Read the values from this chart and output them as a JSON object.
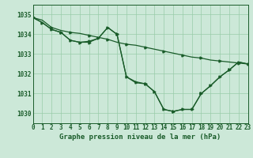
{
  "title": "Graphe pression niveau de la mer (hPa)",
  "bg_color": "#cce8d8",
  "grid_color": "#99ccaa",
  "line_color": "#1a5c2a",
  "xlim": [
    0,
    23
  ],
  "ylim": [
    1029.5,
    1035.5
  ],
  "yticks": [
    1030,
    1031,
    1032,
    1033,
    1034,
    1035
  ],
  "xticks": [
    0,
    1,
    2,
    3,
    4,
    5,
    6,
    7,
    8,
    9,
    10,
    11,
    12,
    13,
    14,
    15,
    16,
    17,
    18,
    19,
    20,
    21,
    22,
    23
  ],
  "x": [
    0,
    1,
    2,
    3,
    4,
    5,
    6,
    7,
    8,
    9,
    10,
    11,
    12,
    13,
    14,
    15,
    16,
    17,
    18,
    19,
    20,
    21,
    22,
    23
  ],
  "line1_y": [
    1034.85,
    1034.72,
    1034.35,
    1034.2,
    1034.1,
    1034.05,
    1033.95,
    1033.85,
    1033.75,
    1033.6,
    1033.5,
    1033.45,
    1033.35,
    1033.25,
    1033.15,
    1033.05,
    1032.95,
    1032.85,
    1032.8,
    1032.7,
    1032.65,
    1032.6,
    1032.55,
    1032.5
  ],
  "line2_y": [
    1034.85,
    1034.6,
    1034.25,
    1034.1,
    1033.7,
    1033.6,
    1033.6,
    1033.8,
    1034.35,
    1034.0,
    1031.85,
    1031.6,
    1031.5,
    1031.1,
    1030.2,
    1030.1,
    1030.2,
    1030.2,
    1031.0,
    1031.4,
    1031.85,
    1032.2,
    1032.6,
    1032.5
  ],
  "line3_y": [
    1034.85,
    1034.6,
    1034.25,
    1034.1,
    1033.7,
    1033.6,
    1033.65,
    1033.8,
    1034.35,
    1034.0,
    1031.85,
    1031.55,
    1031.5,
    1031.1,
    1030.2,
    1030.1,
    1030.2,
    1030.2,
    1031.0,
    1031.4,
    1031.85,
    1032.2,
    1032.6,
    1032.5
  ],
  "tick_fontsize": 5.5,
  "title_fontsize": 6.5
}
